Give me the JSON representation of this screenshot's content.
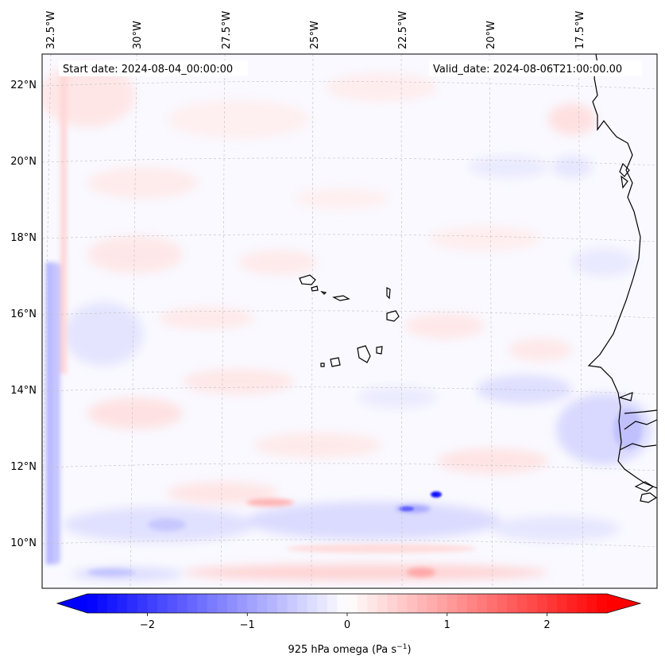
{
  "map": {
    "start_date_label": "Start date: 2024-08-04_00:00:00",
    "valid_date_label": "Valid_date: 2024-08-06T21:00:00.00",
    "lon_labels": [
      "32.5°W",
      "30°W",
      "27.5°W",
      "25°W",
      "22.5°W",
      "20°W",
      "17.5°W"
    ],
    "lat_labels": [
      "22°N",
      "20°N",
      "18°N",
      "16°N",
      "14°N",
      "12°N",
      "10°N"
    ],
    "extent": {
      "lon_min": -32.7,
      "lon_max": -15.2,
      "lat_min": 8.8,
      "lat_max": 22.8
    },
    "gridlines": true
  },
  "colorbar": {
    "label": "925 hPa omega (Pa s",
    "label_sup": "−1",
    "label_end": ")",
    "ticks": [
      "−2",
      "−1",
      "0",
      "1",
      "2"
    ],
    "tick_values": [
      -2,
      -1,
      0,
      1,
      2
    ],
    "range": [
      -2.6,
      2.6
    ],
    "extend": "both",
    "colormap": "bwr",
    "colors": {
      "min": "#0000ff",
      "mid": "#ffffff",
      "max": "#ff0000"
    }
  }
}
